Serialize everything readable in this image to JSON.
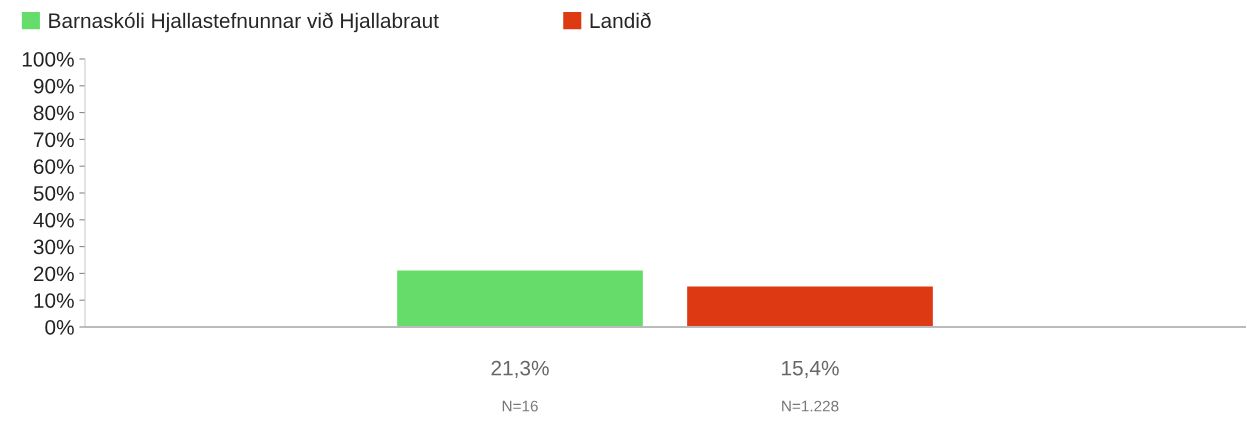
{
  "chart_data": {
    "type": "bar",
    "categories": [
      null
    ],
    "series": [
      {
        "name": "Barnaskóli Hjallastefnunnar við Hjallabraut",
        "color": "#66dd6a",
        "values": [
          21.3
        ],
        "value_labels": [
          "21,3%"
        ]
      },
      {
        "name": "Landið",
        "color": "#dd3a14",
        "values": [
          15.4
        ],
        "value_labels": [
          "15,4%"
        ]
      }
    ],
    "annotations": [
      "N=16",
      "N=1.228"
    ],
    "ylim": [
      0,
      100
    ],
    "yticks": [
      {
        "value": 0,
        "label": "0%"
      },
      {
        "value": 10,
        "label": "10%"
      },
      {
        "value": 20,
        "label": "20%"
      },
      {
        "value": 30,
        "label": "30%"
      },
      {
        "value": 40,
        "label": "40%"
      },
      {
        "value": 50,
        "label": "50%"
      },
      {
        "value": 60,
        "label": "60%"
      },
      {
        "value": 70,
        "label": "70%"
      },
      {
        "value": 80,
        "label": "80%"
      },
      {
        "value": 90,
        "label": "90%"
      },
      {
        "value": 100,
        "label": "100%"
      }
    ],
    "grid": false,
    "legend": "top left"
  }
}
